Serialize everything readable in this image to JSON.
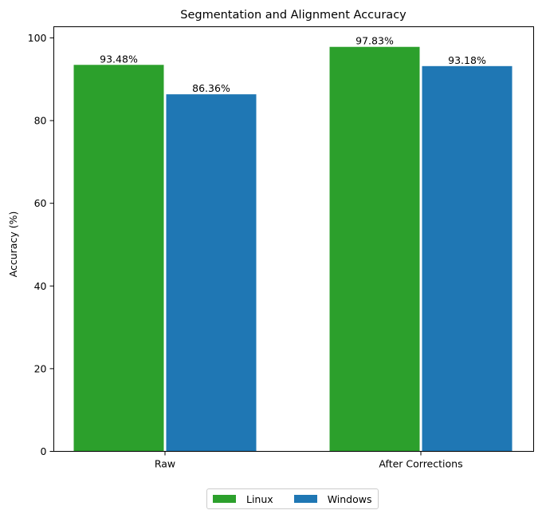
{
  "chart_data": {
    "type": "bar",
    "title": "Segmentation and Alignment Accuracy",
    "xlabel": "",
    "ylabel": "Accuracy (%)",
    "categories": [
      "Raw",
      "After Corrections"
    ],
    "series": [
      {
        "name": "Linux",
        "color": "#2ca02c",
        "values": [
          93.48,
          97.83
        ],
        "labels": [
          "93.48%",
          "97.83%"
        ]
      },
      {
        "name": "Windows",
        "color": "#1f77b4",
        "values": [
          86.36,
          93.18
        ],
        "labels": [
          "86.36%",
          "93.18%"
        ]
      }
    ],
    "ylim": [
      0,
      102.7
    ],
    "yticks": [
      0,
      20,
      40,
      60,
      80,
      100
    ],
    "grid": false,
    "legend_position": "bottom-center"
  }
}
